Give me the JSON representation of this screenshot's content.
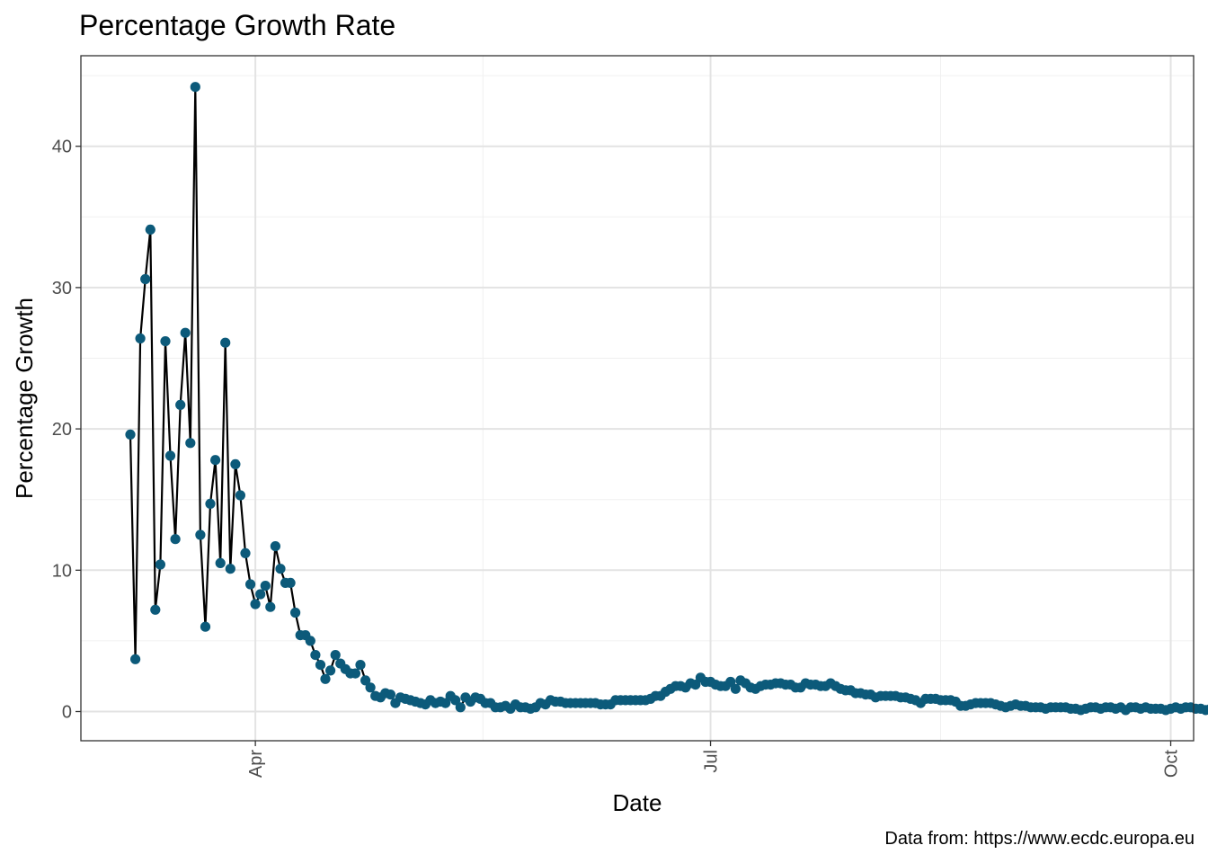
{
  "chart_data": {
    "type": "line",
    "title": "Percentage Growth Rate",
    "xlabel": "Date",
    "ylabel": "Percentage Growth",
    "caption": "Data from: https://www.ecdc.europa.eu",
    "x_tick_labels": [
      "Apr",
      "Jul",
      "Oct"
    ],
    "y_tick_labels": [
      "0",
      "10",
      "20",
      "30",
      "40"
    ],
    "ylim": [
      -2,
      46
    ],
    "grid": true,
    "point_color": "#0c5a7a",
    "line_color": "#000000",
    "series": [
      {
        "x_start": "2020-03-07",
        "x_step_days": 1,
        "values": [
          19.6,
          3.7,
          26.4,
          30.6,
          34.1,
          7.2,
          10.4,
          26.2,
          18.1,
          12.2,
          21.7,
          26.8,
          19.0,
          44.2,
          12.5,
          6.0,
          14.7,
          17.8,
          10.5,
          26.1,
          10.1,
          17.5,
          15.3,
          11.2,
          9.0,
          7.6,
          8.3,
          8.9,
          7.4,
          11.7,
          10.1,
          9.1,
          9.1,
          7.0,
          5.4,
          5.4,
          5.0,
          4.0,
          3.3,
          2.3,
          2.9,
          4.0,
          3.4,
          3.0,
          2.7,
          2.7,
          3.3,
          2.2,
          1.7,
          1.1,
          1.0,
          1.3,
          1.2,
          0.6,
          1.0,
          0.9,
          0.8,
          0.7,
          0.6,
          0.5,
          0.8,
          0.6,
          0.7,
          0.6,
          1.1,
          0.8,
          0.3,
          1.0,
          0.7,
          1.0,
          0.9,
          0.6,
          0.6,
          0.3,
          0.3,
          0.4,
          0.2,
          0.5,
          0.3,
          0.3,
          0.2,
          0.3,
          0.6,
          0.5,
          0.8,
          0.7,
          0.7,
          0.6,
          0.6,
          0.6,
          0.6,
          0.6,
          0.6,
          0.6,
          0.5,
          0.5,
          0.5,
          0.8,
          0.8,
          0.8,
          0.8,
          0.8,
          0.8,
          0.8,
          0.9,
          1.1,
          1.1,
          1.4,
          1.6,
          1.8,
          1.8,
          1.7,
          2.0,
          1.9,
          2.4,
          2.1,
          2.1,
          1.9,
          1.8,
          1.8,
          2.1,
          1.6,
          2.2,
          2.0,
          1.7,
          1.6,
          1.8,
          1.9,
          1.9,
          2.0,
          2.0,
          1.9,
          1.9,
          1.7,
          1.7,
          2.0,
          1.9,
          1.9,
          1.8,
          1.8,
          2.0,
          1.8,
          1.6,
          1.5,
          1.5,
          1.3,
          1.3,
          1.2,
          1.2,
          1.0,
          1.1,
          1.1,
          1.1,
          1.1,
          1.0,
          1.0,
          0.9,
          0.8,
          0.6,
          0.9,
          0.9,
          0.9,
          0.8,
          0.8,
          0.8,
          0.7,
          0.4,
          0.4,
          0.5,
          0.6,
          0.6,
          0.6,
          0.6,
          0.5,
          0.4,
          0.3,
          0.4,
          0.5,
          0.4,
          0.4,
          0.3,
          0.3,
          0.3,
          0.2,
          0.3,
          0.3,
          0.3,
          0.3,
          0.2,
          0.2,
          0.1,
          0.2,
          0.3,
          0.3,
          0.2,
          0.3,
          0.3,
          0.2,
          0.3,
          0.1,
          0.3,
          0.3,
          0.2,
          0.3,
          0.2,
          0.2,
          0.2,
          0.1,
          0.2,
          0.3,
          0.2,
          0.3,
          0.3,
          0.2,
          0.2,
          0.1,
          0.2,
          0.3,
          0.3,
          0.3,
          0.4,
          0.3,
          0.3
        ]
      }
    ]
  }
}
